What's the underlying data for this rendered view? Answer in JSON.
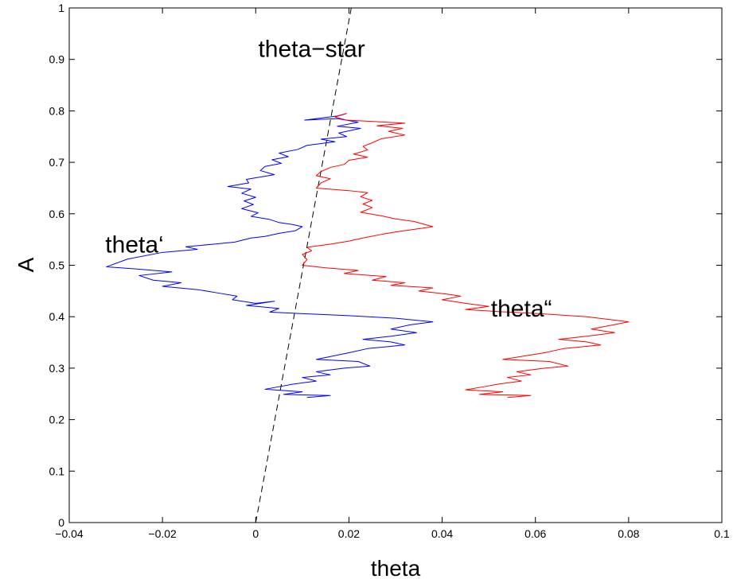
{
  "chart_data": {
    "type": "line",
    "xlabel": "theta",
    "ylabel": "A",
    "xlim": [
      -0.04,
      0.1
    ],
    "ylim": [
      0,
      1
    ],
    "x_ticks": [
      -0.04,
      -0.02,
      0,
      0.02,
      0.04,
      0.06,
      0.08,
      0.1
    ],
    "x_tick_labels": [
      "−0.04",
      "−0.02",
      "0",
      "0.02",
      "0.04",
      "0.06",
      "0.08",
      "0.1"
    ],
    "y_ticks": [
      0,
      0.1,
      0.2,
      0.3,
      0.4,
      0.5,
      0.6,
      0.7,
      0.8,
      0.9,
      1
    ],
    "y_tick_labels": [
      "0",
      "0.1",
      "0.2",
      "0.3",
      "0.4",
      "0.5",
      "0.6",
      "0.7",
      "0.8",
      "0.9",
      "1"
    ],
    "grid": false,
    "legend": "none",
    "annotations": [
      {
        "text": "theta−star",
        "x": 0.012,
        "y": 0.905
      },
      {
        "text": "theta‘",
        "x": -0.026,
        "y": 0.525
      },
      {
        "text": "theta“",
        "x": 0.057,
        "y": 0.4
      }
    ],
    "series": [
      {
        "color": "#000000",
        "style": "dashed",
        "points": [
          [
            0,
            0
          ],
          [
            0.0205,
            1
          ]
        ]
      },
      {
        "color": "#0000ff",
        "style": "solid",
        "points": [
          [
            0.0195,
            0.795
          ],
          [
            0.0175,
            0.79
          ],
          [
            0.0105,
            0.782
          ],
          [
            0.0175,
            0.785
          ],
          [
            0.022,
            0.778
          ],
          [
            0.0175,
            0.77
          ],
          [
            0.0225,
            0.766
          ],
          [
            0.0178,
            0.757
          ],
          [
            0.0195,
            0.75
          ],
          [
            0.014,
            0.745
          ],
          [
            0.017,
            0.74
          ],
          [
            0.011,
            0.733
          ],
          [
            0.009,
            0.725
          ],
          [
            0.005,
            0.718
          ],
          [
            0.007,
            0.711
          ],
          [
            0.0035,
            0.705
          ],
          [
            0.0055,
            0.698
          ],
          [
            0.002,
            0.692
          ],
          [
            0.001,
            0.684
          ],
          [
            0.004,
            0.676
          ],
          [
            -0.002,
            0.667
          ],
          [
            -0.0015,
            0.66
          ],
          [
            -0.006,
            0.653
          ],
          [
            -0.001,
            0.648
          ],
          [
            -0.003,
            0.64
          ],
          [
            0.0,
            0.632
          ],
          [
            -0.0025,
            0.625
          ],
          [
            -0.0005,
            0.618
          ],
          [
            -0.003,
            0.61
          ],
          [
            0.0005,
            0.602
          ],
          [
            -0.001,
            0.595
          ],
          [
            0.003,
            0.589
          ],
          [
            0.005,
            0.583
          ],
          [
            0.008,
            0.579
          ],
          [
            0.01,
            0.575
          ],
          [
            0.0085,
            0.567
          ],
          [
            0.005,
            0.562
          ],
          [
            0.002,
            0.556
          ],
          [
            -0.001,
            0.553
          ],
          [
            -0.0045,
            0.545
          ],
          [
            -0.009,
            0.541
          ],
          [
            -0.015,
            0.536
          ],
          [
            -0.0125,
            0.531
          ],
          [
            -0.02,
            0.525
          ],
          [
            -0.0275,
            0.512
          ],
          [
            -0.032,
            0.497
          ],
          [
            -0.026,
            0.493
          ],
          [
            -0.018,
            0.487
          ],
          [
            -0.025,
            0.48
          ],
          [
            -0.022,
            0.471
          ],
          [
            -0.016,
            0.466
          ],
          [
            -0.02,
            0.459
          ],
          [
            -0.012,
            0.452
          ],
          [
            -0.008,
            0.446
          ],
          [
            -0.004,
            0.44
          ],
          [
            -0.005,
            0.433
          ],
          [
            0.0,
            0.426
          ],
          [
            0.004,
            0.43
          ],
          [
            -0.002,
            0.422
          ],
          [
            0.005,
            0.416
          ],
          [
            0.003,
            0.409
          ],
          [
            0.01,
            0.406
          ],
          [
            0.02,
            0.402
          ],
          [
            0.03,
            0.397
          ],
          [
            0.038,
            0.39
          ],
          [
            0.033,
            0.384
          ],
          [
            0.029,
            0.376
          ],
          [
            0.0345,
            0.369
          ],
          [
            0.029,
            0.362
          ],
          [
            0.023,
            0.356
          ],
          [
            0.029,
            0.351
          ],
          [
            0.032,
            0.345
          ],
          [
            0.024,
            0.338
          ],
          [
            0.02,
            0.33
          ],
          [
            0.013,
            0.317
          ],
          [
            0.022,
            0.313
          ],
          [
            0.0245,
            0.304
          ],
          [
            0.019,
            0.3
          ],
          [
            0.013,
            0.293
          ],
          [
            0.016,
            0.287
          ],
          [
            0.01,
            0.282
          ],
          [
            0.013,
            0.275
          ],
          [
            0.008,
            0.269
          ],
          [
            0.005,
            0.264
          ],
          [
            0.002,
            0.259
          ],
          [
            0.01,
            0.254
          ],
          [
            0.006,
            0.249
          ],
          [
            0.016,
            0.247
          ],
          [
            0.011,
            0.243
          ]
        ]
      },
      {
        "color": "#ff0000",
        "style": "solid",
        "points": [
          [
            0.0195,
            0.795
          ],
          [
            0.017,
            0.788
          ],
          [
            0.0195,
            0.782
          ],
          [
            0.026,
            0.779
          ],
          [
            0.032,
            0.776
          ],
          [
            0.026,
            0.771
          ],
          [
            0.0315,
            0.766
          ],
          [
            0.0285,
            0.76
          ],
          [
            0.032,
            0.753
          ],
          [
            0.027,
            0.746
          ],
          [
            0.025,
            0.738
          ],
          [
            0.023,
            0.731
          ],
          [
            0.024,
            0.724
          ],
          [
            0.021,
            0.716
          ],
          [
            0.024,
            0.71
          ],
          [
            0.02,
            0.704
          ],
          [
            0.019,
            0.696
          ],
          [
            0.016,
            0.69
          ],
          [
            0.014,
            0.682
          ],
          [
            0.013,
            0.674
          ],
          [
            0.016,
            0.668
          ],
          [
            0.014,
            0.66
          ],
          [
            0.013,
            0.65
          ],
          [
            0.02,
            0.645
          ],
          [
            0.024,
            0.641
          ],
          [
            0.0225,
            0.633
          ],
          [
            0.025,
            0.626
          ],
          [
            0.023,
            0.619
          ],
          [
            0.025,
            0.612
          ],
          [
            0.0225,
            0.603
          ],
          [
            0.027,
            0.596
          ],
          [
            0.03,
            0.59
          ],
          [
            0.034,
            0.585
          ],
          [
            0.038,
            0.575
          ],
          [
            0.031,
            0.566
          ],
          [
            0.027,
            0.56
          ],
          [
            0.023,
            0.553
          ],
          [
            0.02,
            0.547
          ],
          [
            0.016,
            0.541
          ],
          [
            0.011,
            0.535
          ],
          [
            0.012,
            0.528
          ],
          [
            0.01,
            0.521
          ],
          [
            0.011,
            0.511
          ],
          [
            0.01,
            0.5
          ],
          [
            0.015,
            0.495
          ],
          [
            0.022,
            0.49
          ],
          [
            0.019,
            0.484
          ],
          [
            0.028,
            0.478
          ],
          [
            0.025,
            0.471
          ],
          [
            0.032,
            0.466
          ],
          [
            0.029,
            0.461
          ],
          [
            0.038,
            0.456
          ],
          [
            0.035,
            0.45
          ],
          [
            0.041,
            0.444
          ],
          [
            0.044,
            0.44
          ],
          [
            0.04,
            0.433
          ],
          [
            0.045,
            0.426
          ],
          [
            0.05,
            0.42
          ],
          [
            0.045,
            0.414
          ],
          [
            0.052,
            0.41
          ],
          [
            0.061,
            0.406
          ],
          [
            0.071,
            0.4
          ],
          [
            0.08,
            0.39
          ],
          [
            0.076,
            0.383
          ],
          [
            0.072,
            0.376
          ],
          [
            0.077,
            0.369
          ],
          [
            0.071,
            0.362
          ],
          [
            0.065,
            0.356
          ],
          [
            0.071,
            0.351
          ],
          [
            0.074,
            0.345
          ],
          [
            0.066,
            0.338
          ],
          [
            0.062,
            0.33
          ],
          [
            0.053,
            0.317
          ],
          [
            0.063,
            0.313
          ],
          [
            0.067,
            0.304
          ],
          [
            0.062,
            0.3
          ],
          [
            0.056,
            0.293
          ],
          [
            0.059,
            0.287
          ],
          [
            0.054,
            0.282
          ],
          [
            0.057,
            0.275
          ],
          [
            0.052,
            0.269
          ],
          [
            0.049,
            0.264
          ],
          [
            0.045,
            0.258
          ],
          [
            0.053,
            0.254
          ],
          [
            0.048,
            0.249
          ],
          [
            0.059,
            0.247
          ],
          [
            0.054,
            0.243
          ]
        ]
      }
    ]
  }
}
